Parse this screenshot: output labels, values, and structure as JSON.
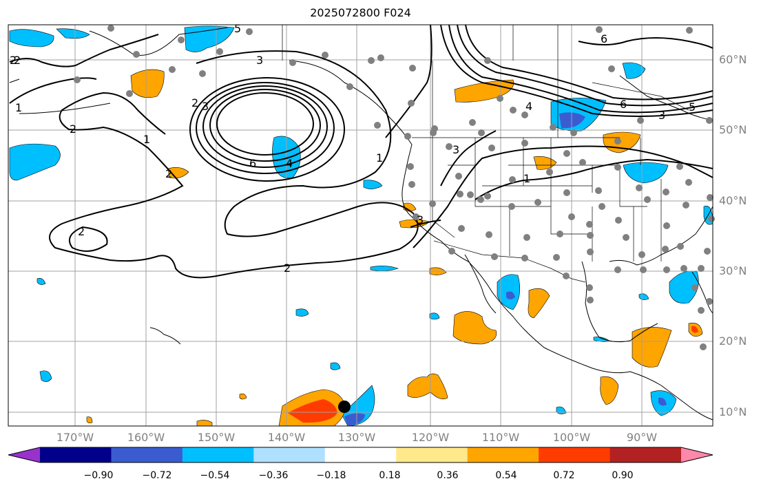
{
  "title": "2025072800 F024",
  "latitude_labels": [
    "60°N",
    "50°N",
    "40°N",
    "30°N",
    "20°N",
    "10°N"
  ],
  "longitude_labels": [
    "170°W",
    "160°W",
    "150°W",
    "140°W",
    "130°W",
    "120°W",
    "110°W",
    "100°W",
    "90°W"
  ],
  "contour_labels": [
    "1",
    "2",
    "3",
    "4",
    "5",
    "6"
  ],
  "colorbar": {
    "ticks": [
      "−0.90",
      "−0.72",
      "−0.54",
      "−0.36",
      "−0.18",
      "0.18",
      "0.36",
      "0.54",
      "0.72",
      "0.90"
    ],
    "colors": [
      "#9932cc",
      "#00008b",
      "#3a5cd0",
      "#00bfff",
      "#b0e0ff",
      "#ffffff",
      "#ffe98a",
      "#ffa500",
      "#ff3c00",
      "#b22222",
      "#ff88aa"
    ]
  },
  "colors": {
    "contour": "#000000",
    "grid": "#a0a0a0",
    "axis_label": "#808080",
    "station_dot": "#808080",
    "storm_marker": "#000000"
  }
}
